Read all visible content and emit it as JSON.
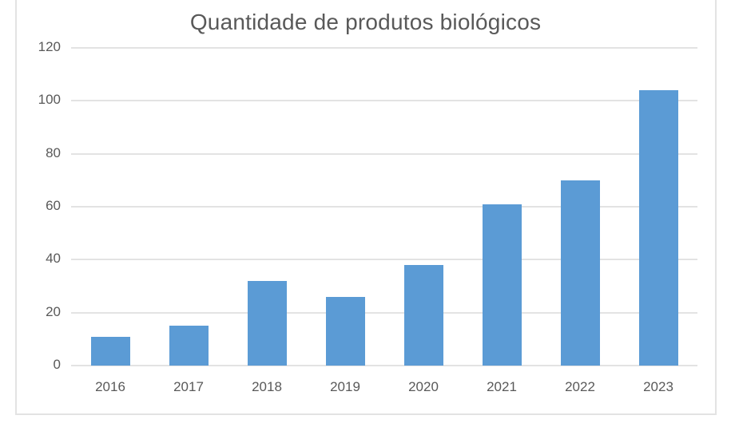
{
  "chart_data": {
    "type": "bar",
    "title": "Quantidade de produtos biológicos",
    "xlabel": "",
    "ylabel": "",
    "categories": [
      "2016",
      "2017",
      "2018",
      "2019",
      "2020",
      "2021",
      "2022",
      "2023"
    ],
    "values": [
      11,
      15,
      32,
      26,
      38,
      61,
      70,
      104
    ],
    "ylim": [
      0,
      120
    ],
    "yticks": [
      "0",
      "20",
      "40",
      "60",
      "80",
      "100",
      "120"
    ],
    "grid": true,
    "legend": "none",
    "bar_color": "#5b9bd5"
  }
}
